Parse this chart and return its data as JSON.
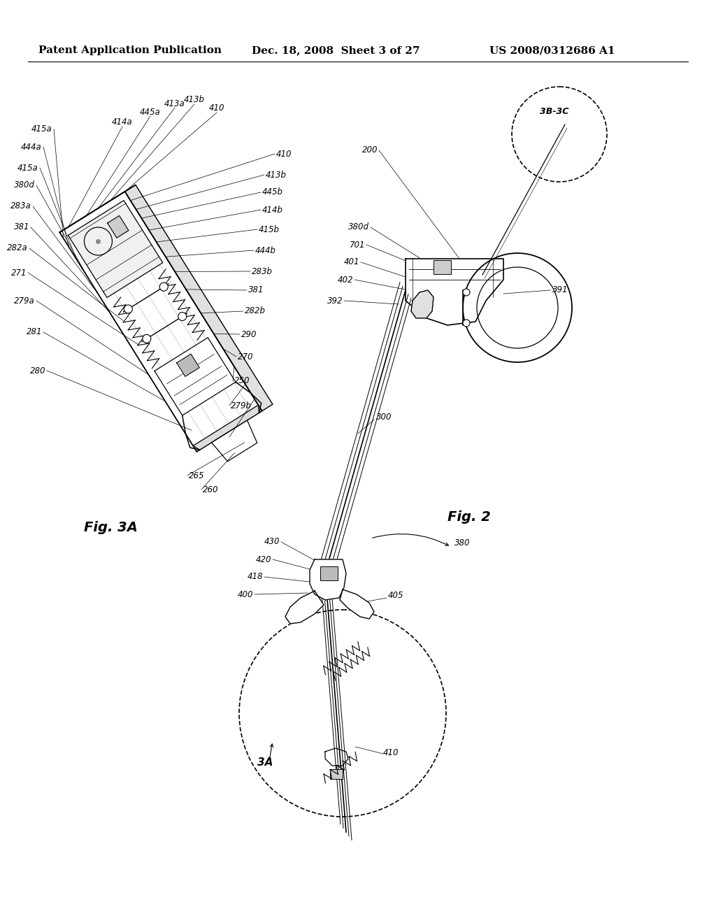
{
  "background_color": "#ffffff",
  "header_left": "Patent Application Publication",
  "header_mid": "Dec. 18, 2008  Sheet 3 of 27",
  "header_right": "US 2008/0312686 A1",
  "header_fontsize": 11,
  "fig_label_2": "Fig. 2",
  "fig_label_3A": "Fig. 3A",
  "line_color": "#000000",
  "line_width": 1.2,
  "label_fontsize": 8.5,
  "figlabel_fontsize": 14
}
